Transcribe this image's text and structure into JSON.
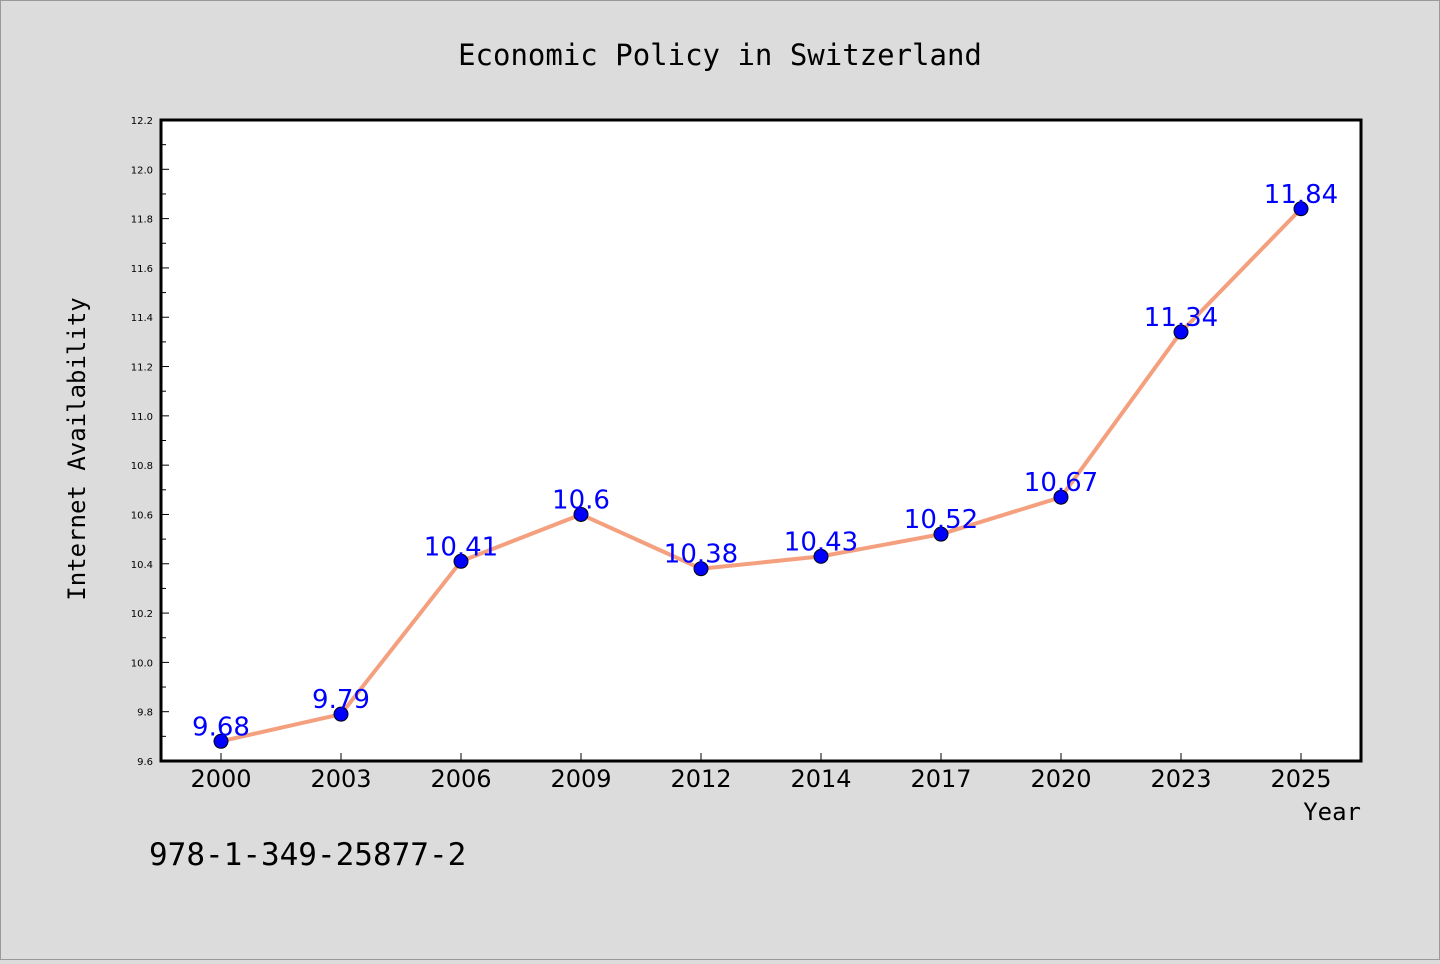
{
  "chart_data": {
    "type": "line",
    "title": "Economic Policy in Switzerland",
    "xlabel": "Year",
    "ylabel": "Internet Availability",
    "categories": [
      "2000",
      "2003",
      "2006",
      "2009",
      "2012",
      "2014",
      "2017",
      "2020",
      "2023",
      "2025"
    ],
    "values": [
      9.68,
      9.79,
      10.41,
      10.6,
      10.38,
      10.43,
      10.52,
      10.67,
      11.34,
      11.84
    ],
    "data_labels": [
      "9.68",
      "9.79",
      "10.41",
      "10.6",
      "10.38",
      "10.43",
      "10.52",
      "10.67",
      "11.34",
      "11.84"
    ],
    "ylim": [
      9.6,
      12.2
    ],
    "yticks": [
      "9.6",
      "9.8",
      "10.0",
      "10.2",
      "10.4",
      "10.6",
      "10.8",
      "11.0",
      "11.2",
      "11.4",
      "11.6",
      "11.8",
      "12.0",
      "12.2"
    ],
    "grid": false,
    "legend": "none",
    "colors": {
      "line": "#f4a07f",
      "marker": "#0000ff",
      "data_label": "#0000ff",
      "background": "#dcdcdc",
      "plot_background": "#ffffff"
    }
  },
  "footer": {
    "isbn": "978-1-349-25877-2"
  }
}
